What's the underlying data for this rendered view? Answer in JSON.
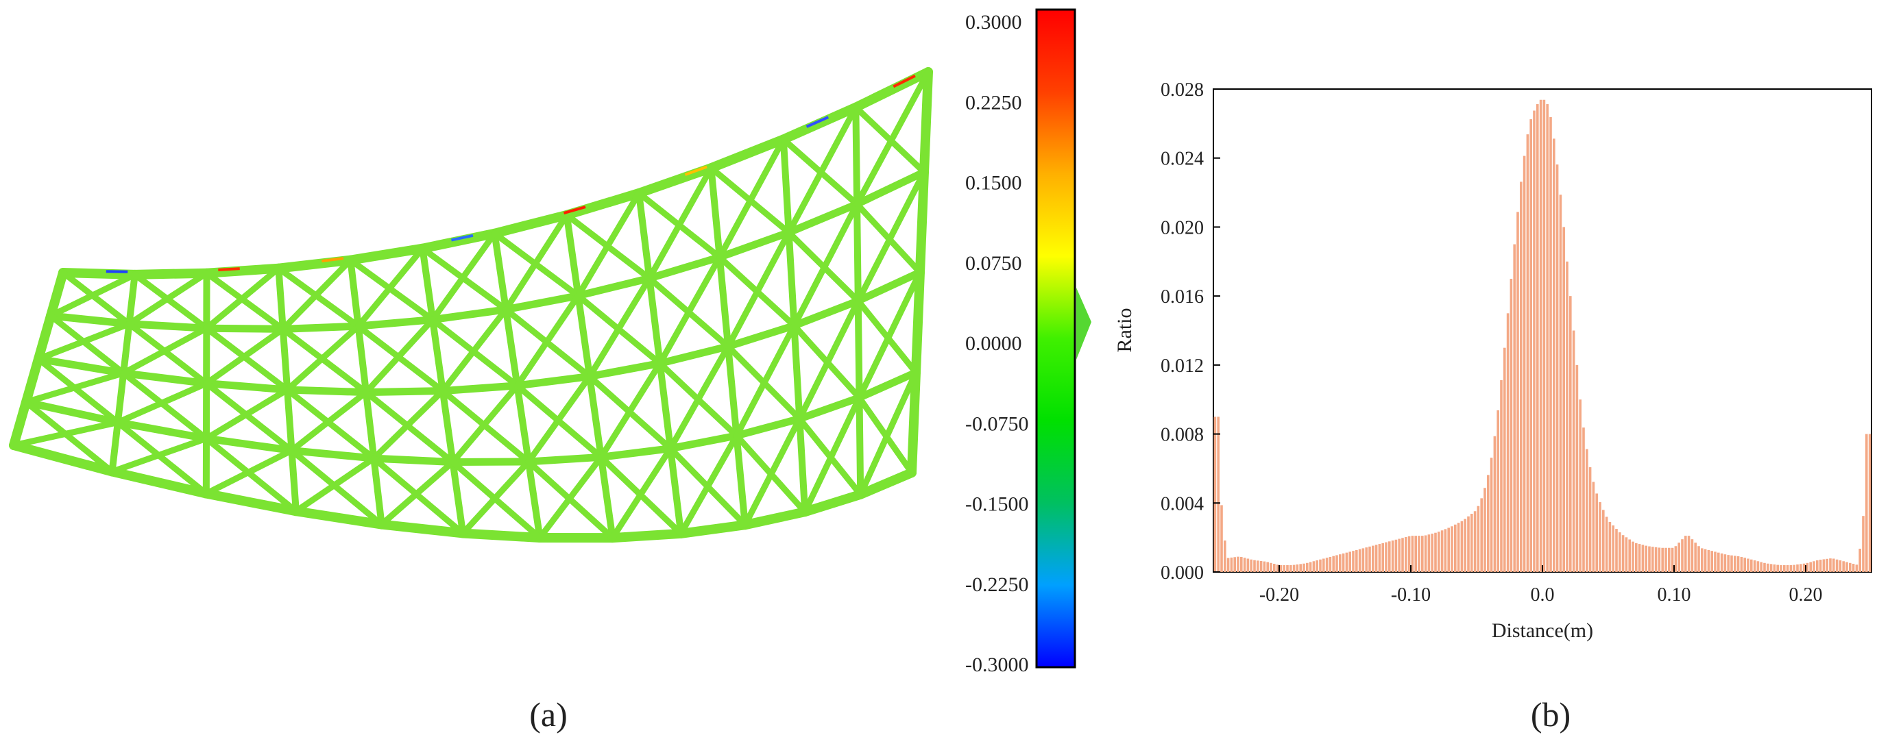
{
  "panel_a": {
    "label": "(a)",
    "colorbar": {
      "ticks": [
        "0.3000",
        "0.2250",
        "0.1500",
        "0.0750",
        "0.0000",
        "-0.0750",
        "-0.1500",
        "-0.2250",
        "-0.3000"
      ],
      "min": -0.3,
      "max": 0.3,
      "colors": [
        "#0000ff",
        "#00a0ff",
        "#00c060",
        "#00e000",
        "#40f000",
        "#ffff00",
        "#ffb000",
        "#ff4000",
        "#ff0000"
      ]
    },
    "mesh_color": "#7be332"
  },
  "panel_b": {
    "label": "(b)",
    "bar_color": "#f4a885",
    "chart_data": {
      "type": "bar",
      "xlabel": "Distance(m)",
      "ylabel": "Ratio",
      "xlim": [
        -0.25,
        0.25
      ],
      "ylim": [
        0,
        0.028
      ],
      "x_ticks": [
        "-0.20",
        "-0.10",
        "0.0",
        "0.10",
        "0.20"
      ],
      "x_tick_values": [
        -0.2,
        -0.1,
        0.0,
        0.1,
        0.2
      ],
      "y_ticks": [
        "0.000",
        "0.004",
        "0.008",
        "0.012",
        "0.016",
        "0.020",
        "0.024",
        "0.028"
      ],
      "y_tick_values": [
        0.0,
        0.004,
        0.008,
        0.012,
        0.016,
        0.02,
        0.024,
        0.028
      ],
      "x": [
        -0.25,
        -0.24,
        -0.23,
        -0.22,
        -0.21,
        -0.2,
        -0.19,
        -0.18,
        -0.17,
        -0.16,
        -0.15,
        -0.14,
        -0.13,
        -0.12,
        -0.11,
        -0.1,
        -0.09,
        -0.08,
        -0.07,
        -0.06,
        -0.05,
        -0.045,
        -0.04,
        -0.035,
        -0.03,
        -0.025,
        -0.02,
        -0.015,
        -0.01,
        -0.005,
        0.0,
        0.005,
        0.01,
        0.015,
        0.02,
        0.025,
        0.03,
        0.035,
        0.04,
        0.045,
        0.05,
        0.06,
        0.07,
        0.08,
        0.09,
        0.1,
        0.11,
        0.12,
        0.13,
        0.14,
        0.15,
        0.16,
        0.17,
        0.18,
        0.19,
        0.2,
        0.21,
        0.22,
        0.23,
        0.24,
        0.25
      ],
      "values": [
        0.009,
        0.0008,
        0.0009,
        0.0007,
        0.0006,
        0.0004,
        0.0004,
        0.0005,
        0.0007,
        0.0009,
        0.0011,
        0.0013,
        0.0015,
        0.0017,
        0.0019,
        0.0021,
        0.0021,
        0.0023,
        0.0026,
        0.003,
        0.0036,
        0.0045,
        0.006,
        0.0085,
        0.012,
        0.016,
        0.02,
        0.0235,
        0.026,
        0.027,
        0.0275,
        0.027,
        0.0245,
        0.021,
        0.017,
        0.013,
        0.009,
        0.0065,
        0.0048,
        0.0038,
        0.003,
        0.0022,
        0.0017,
        0.0015,
        0.0014,
        0.0014,
        0.0022,
        0.0014,
        0.0012,
        0.001,
        0.0009,
        0.0007,
        0.0005,
        0.0004,
        0.0004,
        0.0005,
        0.0007,
        0.0008,
        0.0006,
        0.0004,
        0.008
      ]
    }
  }
}
